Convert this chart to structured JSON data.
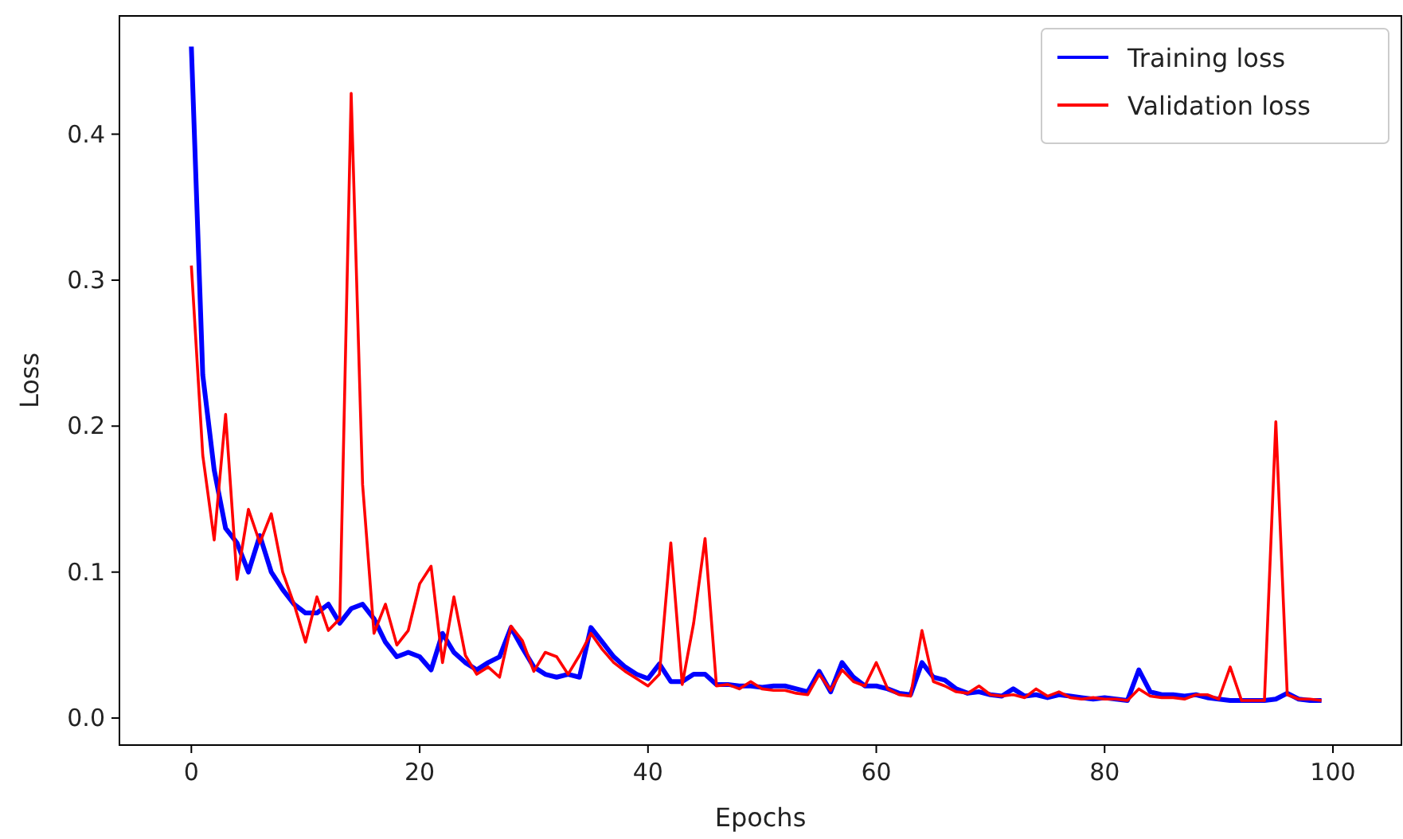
{
  "chart_data": {
    "type": "line",
    "xlabel": "Epochs",
    "ylabel": "Loss",
    "x": [
      0,
      1,
      2,
      3,
      4,
      5,
      6,
      7,
      8,
      9,
      10,
      11,
      12,
      13,
      14,
      15,
      16,
      17,
      18,
      19,
      20,
      21,
      22,
      23,
      24,
      25,
      26,
      27,
      28,
      29,
      30,
      31,
      32,
      33,
      34,
      35,
      36,
      37,
      38,
      39,
      40,
      41,
      42,
      43,
      44,
      45,
      46,
      47,
      48,
      49,
      50,
      51,
      52,
      53,
      54,
      55,
      56,
      57,
      58,
      59,
      60,
      61,
      62,
      63,
      64,
      65,
      66,
      67,
      68,
      69,
      70,
      71,
      72,
      73,
      74,
      75,
      76,
      77,
      78,
      79,
      80,
      81,
      82,
      83,
      84,
      85,
      86,
      87,
      88,
      89,
      90,
      91,
      92,
      93,
      94,
      95,
      96,
      97,
      98,
      99
    ],
    "series": [
      {
        "name": "Training loss",
        "color": "#0000ff",
        "values": [
          0.46,
          0.235,
          0.17,
          0.13,
          0.12,
          0.1,
          0.125,
          0.1,
          0.088,
          0.078,
          0.072,
          0.072,
          0.078,
          0.065,
          0.075,
          0.078,
          0.068,
          0.052,
          0.042,
          0.045,
          0.042,
          0.033,
          0.058,
          0.045,
          0.038,
          0.033,
          0.038,
          0.042,
          0.062,
          0.048,
          0.035,
          0.03,
          0.028,
          0.03,
          0.028,
          0.062,
          0.052,
          0.042,
          0.035,
          0.03,
          0.027,
          0.037,
          0.025,
          0.025,
          0.03,
          0.03,
          0.023,
          0.023,
          0.022,
          0.022,
          0.021,
          0.022,
          0.022,
          0.02,
          0.018,
          0.032,
          0.018,
          0.038,
          0.028,
          0.022,
          0.022,
          0.02,
          0.017,
          0.016,
          0.038,
          0.028,
          0.026,
          0.02,
          0.017,
          0.018,
          0.016,
          0.015,
          0.02,
          0.015,
          0.016,
          0.014,
          0.016,
          0.015,
          0.014,
          0.013,
          0.014,
          0.013,
          0.012,
          0.033,
          0.018,
          0.016,
          0.016,
          0.015,
          0.016,
          0.014,
          0.013,
          0.012,
          0.012,
          0.012,
          0.012,
          0.013,
          0.017,
          0.013,
          0.012,
          0.012
        ]
      },
      {
        "name": "Validation loss",
        "color": "#ff0000",
        "values": [
          0.31,
          0.18,
          0.122,
          0.208,
          0.095,
          0.143,
          0.12,
          0.14,
          0.1,
          0.078,
          0.052,
          0.083,
          0.06,
          0.068,
          0.428,
          0.16,
          0.058,
          0.078,
          0.05,
          0.06,
          0.092,
          0.104,
          0.038,
          0.083,
          0.043,
          0.03,
          0.035,
          0.028,
          0.063,
          0.053,
          0.032,
          0.045,
          0.042,
          0.03,
          0.043,
          0.058,
          0.047,
          0.038,
          0.032,
          0.027,
          0.022,
          0.03,
          0.12,
          0.023,
          0.065,
          0.123,
          0.022,
          0.023,
          0.02,
          0.025,
          0.02,
          0.019,
          0.019,
          0.017,
          0.016,
          0.03,
          0.019,
          0.033,
          0.025,
          0.022,
          0.038,
          0.02,
          0.016,
          0.015,
          0.06,
          0.025,
          0.022,
          0.018,
          0.017,
          0.022,
          0.016,
          0.015,
          0.016,
          0.014,
          0.02,
          0.015,
          0.018,
          0.014,
          0.013,
          0.014,
          0.013,
          0.013,
          0.012,
          0.02,
          0.015,
          0.014,
          0.014,
          0.013,
          0.016,
          0.016,
          0.013,
          0.035,
          0.012,
          0.012,
          0.012,
          0.203,
          0.016,
          0.013,
          0.013,
          0.012
        ]
      }
    ],
    "xlim": [
      -6.3,
      106
    ],
    "ylim": [
      -0.0185,
      0.481
    ],
    "xticks": [
      0,
      20,
      40,
      60,
      80,
      100
    ],
    "yticks": [
      {
        "value": 0,
        "label": "0.0"
      },
      {
        "value": 0.1,
        "label": "0.1"
      },
      {
        "value": 0.2,
        "label": "0.2"
      },
      {
        "value": 0.3,
        "label": "0.3"
      },
      {
        "value": 0.4,
        "label": "0.4"
      }
    ],
    "grid": false,
    "legend": "top right"
  }
}
